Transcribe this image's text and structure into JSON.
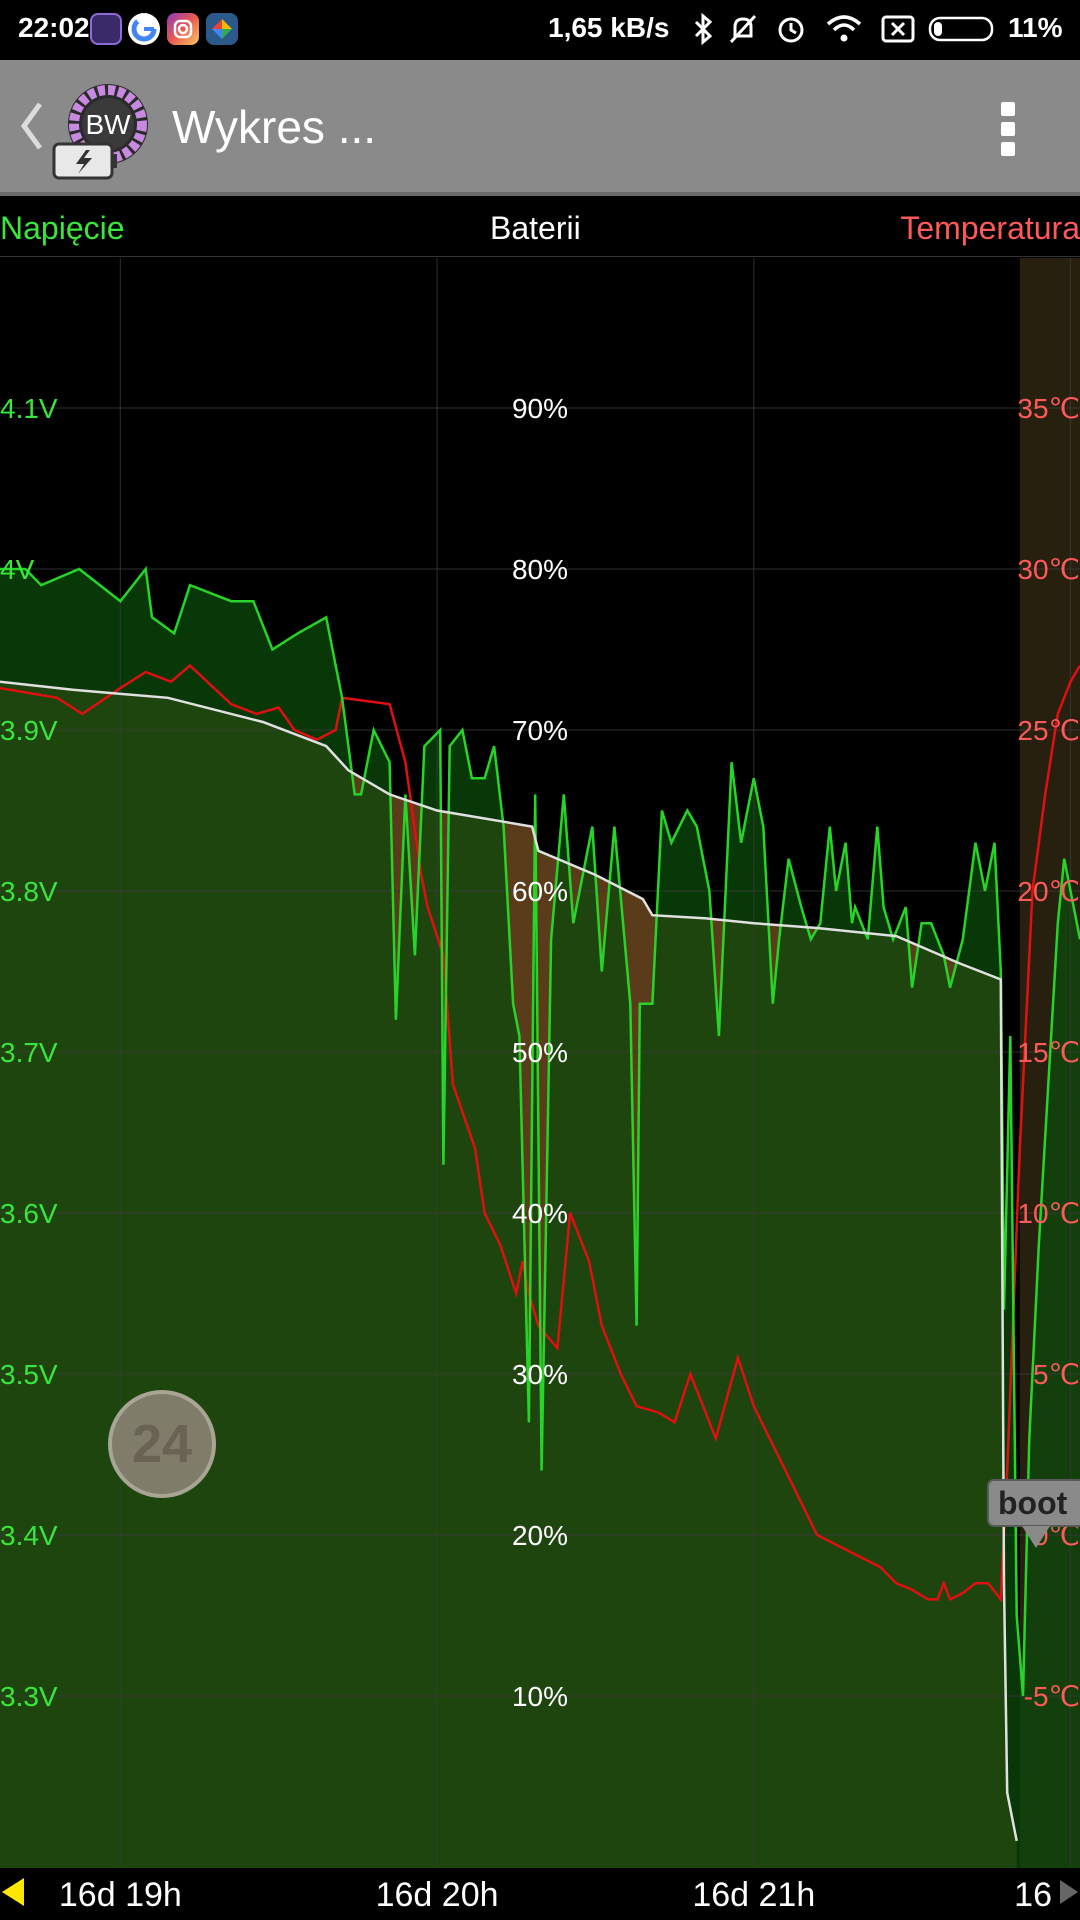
{
  "status_bar": {
    "time": "22:02",
    "net_speed": "1,65 kB/s",
    "battery": "11%",
    "apps": [
      "battery-widget-app-icon",
      "google-app-icon",
      "instagram-app-icon",
      "photos-app-icon"
    ],
    "icons": [
      "bluetooth-icon",
      "mute-icon",
      "alarm-icon",
      "wifi-icon",
      "no-sim-icon",
      "battery-icon"
    ]
  },
  "action_bar": {
    "title": "Wykres ...",
    "logo_text": "BW"
  },
  "chart_header": {
    "left": "Napięcie",
    "center": "Baterii",
    "right": "Temperatura"
  },
  "colors": {
    "voltage": "#27d427",
    "battery": "#e0e0e0",
    "temperature": "#e01010",
    "battery_fill": "#5a3b1a",
    "voltage_fill": "#0b4a0b",
    "grid": "#3a3a3a"
  },
  "chart_data": {
    "type": "line",
    "voltage_ticks": [
      "4.1V",
      "4V",
      "3.9V",
      "3.8V",
      "3.7V",
      "3.6V",
      "3.5V",
      "3.4V",
      "3.3V"
    ],
    "battery_ticks": [
      "90%",
      "80%",
      "70%",
      "60%",
      "50%",
      "40%",
      "30%",
      "20%",
      "10%"
    ],
    "temperature_ticks": [
      "35℃",
      "30℃",
      "25℃",
      "20℃",
      "15℃",
      "10℃",
      "5℃",
      "0℃",
      "-5℃"
    ],
    "x_ticks": [
      "16d 19h",
      "16d 20h",
      "16d 21h",
      "16"
    ],
    "x_tick_hours": [
      19.0,
      20.0,
      21.0,
      22.0
    ],
    "x_range_hours": [
      18.62,
      22.03
    ],
    "voltage_range": [
      3.2,
      4.2
    ],
    "battery_range": [
      0,
      100
    ],
    "temperature_range": [
      -10,
      40
    ],
    "series": [
      {
        "name": "Baterii",
        "unit": "%",
        "points": [
          [
            18.62,
            73
          ],
          [
            18.85,
            72.5
          ],
          [
            19.15,
            72
          ],
          [
            19.45,
            70.5
          ],
          [
            19.65,
            69
          ],
          [
            19.72,
            67.5
          ],
          [
            19.85,
            66
          ],
          [
            20.0,
            65
          ],
          [
            20.15,
            64.5
          ],
          [
            20.3,
            64
          ],
          [
            20.32,
            62.5
          ],
          [
            20.5,
            61
          ],
          [
            20.65,
            59.5
          ],
          [
            20.68,
            58.5
          ],
          [
            20.85,
            58.3
          ],
          [
            21.0,
            58
          ],
          [
            21.2,
            57.7
          ],
          [
            21.45,
            57.2
          ],
          [
            21.65,
            55.5
          ],
          [
            21.78,
            54.5
          ],
          [
            21.79,
            17
          ],
          [
            21.8,
            4
          ],
          [
            21.83,
            1
          ]
        ]
      },
      {
        "name": "Napięcie",
        "unit": "V",
        "points": [
          [
            18.62,
            4.0
          ],
          [
            18.7,
            4.0
          ],
          [
            18.75,
            3.99
          ],
          [
            18.87,
            4.0
          ],
          [
            19.0,
            3.98
          ],
          [
            19.08,
            4.0
          ],
          [
            19.1,
            3.97
          ],
          [
            19.17,
            3.96
          ],
          [
            19.22,
            3.99
          ],
          [
            19.35,
            3.98
          ],
          [
            19.42,
            3.98
          ],
          [
            19.48,
            3.95
          ],
          [
            19.56,
            3.96
          ],
          [
            19.65,
            3.97
          ],
          [
            19.68,
            3.94
          ],
          [
            19.7,
            3.92
          ],
          [
            19.74,
            3.86
          ],
          [
            19.76,
            3.86
          ],
          [
            19.8,
            3.9
          ],
          [
            19.85,
            3.88
          ],
          [
            19.87,
            3.72
          ],
          [
            19.9,
            3.86
          ],
          [
            19.93,
            3.76
          ],
          [
            19.96,
            3.89
          ],
          [
            20.01,
            3.9
          ],
          [
            20.02,
            3.63
          ],
          [
            20.04,
            3.89
          ],
          [
            20.08,
            3.9
          ],
          [
            20.11,
            3.87
          ],
          [
            20.15,
            3.87
          ],
          [
            20.18,
            3.89
          ],
          [
            20.21,
            3.84
          ],
          [
            20.24,
            3.73
          ],
          [
            20.26,
            3.71
          ],
          [
            20.29,
            3.47
          ],
          [
            20.31,
            3.86
          ],
          [
            20.33,
            3.44
          ],
          [
            20.36,
            3.77
          ],
          [
            20.4,
            3.86
          ],
          [
            20.43,
            3.78
          ],
          [
            20.49,
            3.84
          ],
          [
            20.52,
            3.75
          ],
          [
            20.56,
            3.84
          ],
          [
            20.61,
            3.73
          ],
          [
            20.63,
            3.53
          ],
          [
            20.64,
            3.73
          ],
          [
            20.68,
            3.73
          ],
          [
            20.71,
            3.85
          ],
          [
            20.74,
            3.83
          ],
          [
            20.79,
            3.85
          ],
          [
            20.82,
            3.84
          ],
          [
            20.86,
            3.8
          ],
          [
            20.89,
            3.71
          ],
          [
            20.93,
            3.88
          ],
          [
            20.96,
            3.83
          ],
          [
            21.0,
            3.87
          ],
          [
            21.03,
            3.84
          ],
          [
            21.06,
            3.73
          ],
          [
            21.08,
            3.77
          ],
          [
            21.11,
            3.82
          ],
          [
            21.15,
            3.79
          ],
          [
            21.18,
            3.77
          ],
          [
            21.21,
            3.78
          ],
          [
            21.24,
            3.84
          ],
          [
            21.26,
            3.8
          ],
          [
            21.29,
            3.83
          ],
          [
            21.31,
            3.78
          ],
          [
            21.32,
            3.79
          ],
          [
            21.36,
            3.77
          ],
          [
            21.39,
            3.84
          ],
          [
            21.41,
            3.79
          ],
          [
            21.44,
            3.77
          ],
          [
            21.46,
            3.78
          ],
          [
            21.48,
            3.79
          ],
          [
            21.5,
            3.74
          ],
          [
            21.53,
            3.78
          ],
          [
            21.56,
            3.78
          ],
          [
            21.6,
            3.76
          ],
          [
            21.62,
            3.74
          ],
          [
            21.66,
            3.77
          ],
          [
            21.7,
            3.83
          ],
          [
            21.73,
            3.8
          ],
          [
            21.76,
            3.83
          ],
          [
            21.78,
            3.75
          ],
          [
            21.79,
            3.54
          ],
          [
            21.81,
            3.71
          ],
          [
            21.83,
            3.35
          ],
          [
            21.85,
            3.3
          ],
          [
            21.87,
            3.46
          ],
          [
            21.9,
            3.58
          ],
          [
            21.93,
            3.68
          ],
          [
            21.96,
            3.78
          ],
          [
            21.98,
            3.82
          ],
          [
            22.03,
            3.77
          ]
        ]
      },
      {
        "name": "Temperatura",
        "unit": "℃",
        "points": [
          [
            18.62,
            26.3
          ],
          [
            18.8,
            26
          ],
          [
            18.88,
            25.5
          ],
          [
            19.0,
            26.3
          ],
          [
            19.08,
            26.8
          ],
          [
            19.16,
            26.5
          ],
          [
            19.22,
            27
          ],
          [
            19.35,
            25.8
          ],
          [
            19.43,
            25.5
          ],
          [
            19.5,
            25.7
          ],
          [
            19.55,
            25
          ],
          [
            19.62,
            24.7
          ],
          [
            19.68,
            25
          ],
          [
            19.7,
            26
          ],
          [
            19.85,
            25.8
          ],
          [
            19.9,
            24
          ],
          [
            19.95,
            20.5
          ],
          [
            19.97,
            19.5
          ],
          [
            20.02,
            18
          ],
          [
            20.05,
            14
          ],
          [
            20.12,
            12
          ],
          [
            20.15,
            10
          ],
          [
            20.2,
            9
          ],
          [
            20.25,
            7.5
          ],
          [
            20.27,
            8.5
          ],
          [
            20.29,
            7.5
          ],
          [
            20.32,
            6.5
          ],
          [
            20.38,
            5.8
          ],
          [
            20.42,
            10
          ],
          [
            20.48,
            8.5
          ],
          [
            20.52,
            6.5
          ],
          [
            20.58,
            5
          ],
          [
            20.63,
            4
          ],
          [
            20.7,
            3.8
          ],
          [
            20.75,
            3.5
          ],
          [
            20.8,
            5
          ],
          [
            20.88,
            3
          ],
          [
            20.95,
            5.5
          ],
          [
            21.0,
            4
          ],
          [
            21.05,
            3
          ],
          [
            21.1,
            2
          ],
          [
            21.2,
            0
          ],
          [
            21.3,
            -0.5
          ],
          [
            21.4,
            -1
          ],
          [
            21.45,
            -1.5
          ],
          [
            21.5,
            -1.7
          ],
          [
            21.55,
            -2
          ],
          [
            21.58,
            -2
          ],
          [
            21.6,
            -1.5
          ],
          [
            21.62,
            -2
          ],
          [
            21.66,
            -1.8
          ],
          [
            21.7,
            -1.5
          ],
          [
            21.74,
            -1.5
          ],
          [
            21.78,
            -2
          ],
          [
            21.8,
            2
          ],
          [
            21.84,
            12
          ],
          [
            21.88,
            20
          ],
          [
            21.92,
            23
          ],
          [
            21.96,
            25.5
          ],
          [
            22.0,
            26.5
          ],
          [
            22.03,
            27
          ]
        ]
      }
    ]
  },
  "badge": {
    "value": "24"
  },
  "boot_marker": {
    "label": "boot"
  }
}
